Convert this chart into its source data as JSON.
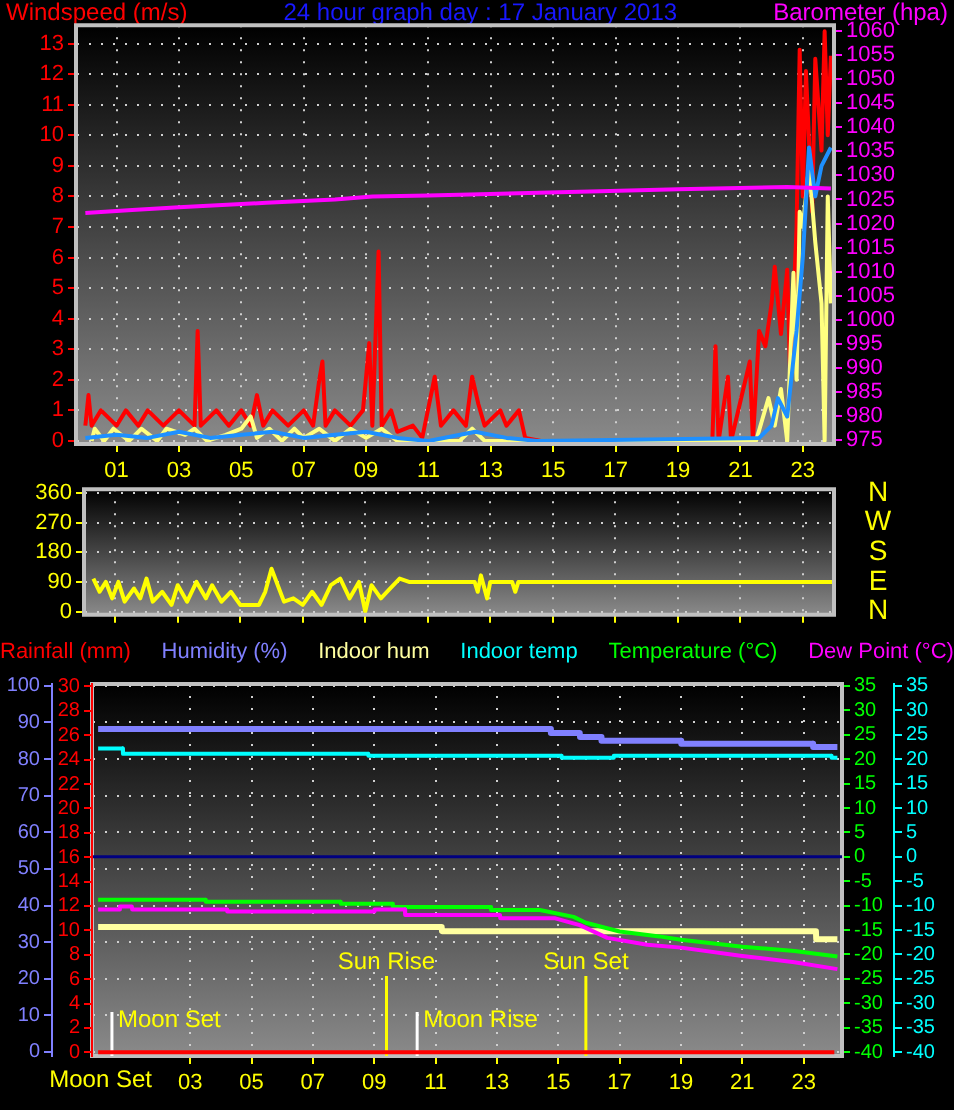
{
  "chart_data": [
    {
      "type": "line",
      "title": "24 hour graph day : 17 January 2013",
      "ylabel": "Windspeed (m/s)",
      "y2label": "Barometer (hpa)",
      "grid": true,
      "xlim": [
        -0.3,
        24.0
      ],
      "xticks": [
        {
          "value": 1,
          "label": "01"
        },
        {
          "value": 3,
          "label": "03"
        },
        {
          "value": 5,
          "label": "05"
        },
        {
          "value": 7,
          "label": "07"
        },
        {
          "value": 9,
          "label": "09"
        },
        {
          "value": 11,
          "label": "11"
        },
        {
          "value": 13,
          "label": "13"
        },
        {
          "value": 15,
          "label": "15"
        },
        {
          "value": 17,
          "label": "17"
        },
        {
          "value": 19,
          "label": "19"
        },
        {
          "value": 21,
          "label": "21"
        },
        {
          "value": 23,
          "label": "23"
        }
      ],
      "ylim": [
        -0.1,
        13.6
      ],
      "yticks": [
        0,
        1,
        2,
        3,
        4,
        5,
        6,
        7,
        8,
        9,
        10,
        11,
        12,
        13
      ],
      "y2lim": [
        974.2,
        1061.2
      ],
      "y2ticks": [
        975,
        980,
        985,
        990,
        995,
        1000,
        1005,
        1010,
        1015,
        1020,
        1025,
        1030,
        1035,
        1040,
        1045,
        1050,
        1055,
        1060
      ],
      "series": [
        {
          "color": "#ff0000",
          "x": [
            0.0,
            0.1,
            0.2,
            0.5,
            1.0,
            1.3,
            1.7,
            2.0,
            2.5,
            3.0,
            3.5,
            3.6,
            3.7,
            4.2,
            4.6,
            5.0,
            5.3,
            5.5,
            5.7,
            6.0,
            6.5,
            7.0,
            7.3,
            7.5,
            7.6,
            7.7,
            8.0,
            8.5,
            8.9,
            9.1,
            9.2,
            9.4,
            9.5,
            9.8,
            10.0,
            10.5,
            10.8,
            11.2,
            11.4,
            11.8,
            12.2,
            12.4,
            12.6,
            12.8,
            13.3,
            13.5,
            13.9,
            14.1,
            14.6,
            20.1,
            20.2,
            20.3,
            20.6,
            20.7,
            21.3,
            21.4,
            21.6,
            21.8,
            22.0,
            22.1,
            22.3,
            22.5,
            22.6,
            22.8,
            22.9,
            23.0,
            23.1,
            23.3,
            23.4,
            23.6,
            23.7,
            23.8,
            23.9
          ],
          "values": [
            0.5,
            1.5,
            0.5,
            1,
            0.5,
            1,
            0.5,
            1,
            0.5,
            1,
            0.5,
            3.6,
            0.5,
            1,
            0.5,
            1,
            0.5,
            1.5,
            0.5,
            1,
            0.5,
            1,
            0.5,
            2,
            2.6,
            0.5,
            1,
            0.5,
            1,
            3.2,
            0.5,
            6.2,
            0.5,
            1,
            0.3,
            0.5,
            0.1,
            2.1,
            0.5,
            1,
            0.5,
            2.1,
            1.2,
            0.5,
            1,
            0.5,
            1,
            0.1,
            0,
            0,
            3.1,
            0,
            2.1,
            0,
            2.6,
            0,
            3.6,
            3.1,
            4.5,
            5.7,
            3.5,
            5.6,
            2,
            7,
            12.8,
            8,
            12.1,
            7.5,
            12.5,
            9.5,
            13.4,
            10,
            12.6
          ]
        },
        {
          "color": "#ffff80",
          "x": [
            0.2,
            0.3,
            0.6,
            0.9,
            1.4,
            1.8,
            2.3,
            2.6,
            3.2,
            3.5,
            3.9,
            4.5,
            5.0,
            5.3,
            5.5,
            5.9,
            6.3,
            6.7,
            7.0,
            7.5,
            8.0,
            8.5,
            9.0,
            9.5,
            10.0,
            12.0,
            12.4,
            12.8,
            21.5,
            21.9,
            22.1,
            22.3,
            22.5,
            22.7,
            22.8,
            22.9,
            23.0,
            23.2,
            23.4,
            23.6,
            23.7,
            23.8,
            23.9
          ],
          "values": [
            0,
            0.4,
            0,
            0.4,
            0,
            0.4,
            0,
            0.4,
            0.2,
            0.4,
            0,
            0.2,
            0.4,
            0.8,
            0.1,
            0.4,
            0,
            0.4,
            0.1,
            0.4,
            0,
            0.4,
            0.1,
            0.4,
            0,
            0,
            0.4,
            0,
            0,
            1.4,
            0.5,
            1.7,
            0,
            5.5,
            2,
            7.5,
            7,
            9,
            6.5,
            4.5,
            0,
            8,
            4.5
          ]
        },
        {
          "color": "#1e90ff",
          "x": [
            0,
            1,
            2,
            3,
            4,
            5,
            6,
            7,
            8,
            9,
            10,
            11,
            12.5,
            13.5,
            14.5,
            21.6,
            22.0,
            22.2,
            22.5,
            22.8,
            23.0,
            23.2,
            23.4,
            23.6,
            23.9
          ],
          "values": [
            0.1,
            0.2,
            0.1,
            0.3,
            0.1,
            0.2,
            0.3,
            0.1,
            0.2,
            0.3,
            0.1,
            0,
            0.3,
            0.1,
            0,
            0.1,
            0.5,
            1.4,
            0.8,
            3.6,
            6,
            9.6,
            8,
            9,
            9.6
          ]
        },
        {
          "color": "#ff00ff",
          "axis": "y2",
          "x": [
            0,
            1.5,
            3,
            5.8,
            8,
            9.2,
            11,
            13.3,
            16.5,
            19,
            22.5,
            23.9
          ],
          "values": [
            1022.2,
            1022.8,
            1023.4,
            1024.3,
            1025,
            1025.6,
            1025.8,
            1026.2,
            1026.7,
            1027.1,
            1027.6,
            1027.3
          ]
        }
      ]
    },
    {
      "type": "line",
      "grid": true,
      "tick_labels": "y",
      "xlim": [
        0,
        24
      ],
      "xticks": [
        1,
        3,
        5,
        7,
        9,
        11,
        13,
        15,
        17,
        19,
        21,
        23
      ],
      "ylim": [
        -10,
        372
      ],
      "yticks": [
        0,
        90,
        180,
        270,
        360
      ],
      "annotations": [
        "N",
        "W",
        "S",
        "E",
        "N"
      ],
      "series": [
        {
          "color": "#ffff00",
          "x": [
            0.3,
            0.5,
            0.7,
            0.9,
            1.1,
            1.3,
            1.6,
            1.8,
            2.0,
            2.2,
            2.5,
            2.8,
            3.0,
            3.3,
            3.6,
            3.9,
            4.1,
            4.4,
            4.7,
            5.0,
            5.6,
            5.8,
            6.0,
            6.2,
            6.4,
            6.7,
            7.0,
            7.3,
            7.6,
            7.9,
            8.2,
            8.5,
            8.8,
            9.0,
            9.2,
            9.5,
            9.8,
            10.1,
            10.4,
            12.5,
            12.6,
            12.7,
            12.9,
            13.0,
            13.7,
            13.8,
            13.9,
            24.0
          ],
          "values": [
            100,
            60,
            90,
            40,
            90,
            30,
            70,
            40,
            100,
            30,
            60,
            20,
            80,
            30,
            90,
            40,
            80,
            30,
            60,
            20,
            20,
            60,
            130,
            80,
            30,
            40,
            20,
            60,
            20,
            80,
            100,
            40,
            90,
            0,
            80,
            40,
            70,
            100,
            90,
            90,
            60,
            110,
            40,
            90,
            90,
            60,
            90,
            90
          ]
        }
      ]
    },
    {
      "type": "line",
      "tick_labels": "y",
      "legend": "top left",
      "xlim": [
        -0.2,
        24.25
      ],
      "ylim": [
        -0.3,
        30.2
      ],
      "yticks": [
        0,
        2,
        4,
        6,
        8,
        10,
        12,
        14,
        16,
        18,
        20,
        22,
        24,
        26,
        28,
        30
      ],
      "series": [
        {
          "name": "Rainfall (mm)",
          "color": "#ff0000",
          "x": [
            0,
            1,
            2,
            3,
            4,
            5,
            6,
            7,
            8,
            9,
            10,
            11,
            12,
            13,
            14,
            15,
            16,
            17,
            18,
            19,
            20,
            21,
            22,
            23,
            24
          ],
          "values": [
            0,
            0,
            0,
            0,
            0,
            0,
            0,
            0,
            0,
            0,
            0,
            0,
            0,
            0,
            0,
            0,
            0,
            0,
            0,
            0,
            0,
            0,
            0,
            0,
            0
          ]
        }
      ]
    },
    {
      "type": "line",
      "grid": true,
      "legend": "top",
      "annotations": [
        "Moon Set"
      ],
      "xlim": [
        -0.2,
        24.25
      ],
      "xticks": [
        {
          "value": 3,
          "label": "03"
        },
        {
          "value": 5,
          "label": "05"
        },
        {
          "value": 7,
          "label": "07"
        },
        {
          "value": 9,
          "label": "09"
        },
        {
          "value": 11,
          "label": "11"
        },
        {
          "value": 13,
          "label": "13"
        },
        {
          "value": 15,
          "label": "15"
        },
        {
          "value": 17,
          "label": "17"
        },
        {
          "value": 19,
          "label": "19"
        },
        {
          "value": 21,
          "label": "21"
        },
        {
          "value": 23,
          "label": "23"
        }
      ],
      "ylim": [
        -1.1,
        100.5
      ],
      "yticks": [
        0,
        10,
        20,
        30,
        40,
        50,
        60,
        70,
        80,
        90,
        100
      ],
      "y2lim": [
        -40.8,
        35.4
      ],
      "y2ticks": [
        -40,
        -35,
        -30,
        -25,
        -20,
        -15,
        -10,
        -5,
        0,
        5,
        10,
        15,
        20,
        25,
        30,
        35
      ],
      "y3lim": [
        -40.8,
        35.4
      ],
      "y3ticks": [
        -40,
        -35,
        -30,
        -25,
        -20,
        -15,
        -10,
        -5,
        0,
        5,
        10,
        15,
        20,
        25,
        30,
        35
      ],
      "ref_lines": [
        {
          "axis": "y2",
          "value": 0,
          "color": "#000080"
        },
        {
          "axis": "x",
          "value": 0.45,
          "label": "Moon Set",
          "color": "#ffffff"
        },
        {
          "axis": "x",
          "value": 9.4,
          "label": "Sun Rise",
          "color": "#ffff00"
        },
        {
          "axis": "x",
          "value": 10.4,
          "label": "Moon Rise",
          "color": "#ffffff"
        },
        {
          "axis": "x",
          "value": 15.9,
          "label": "Sun Set",
          "color": "#ffff00"
        }
      ],
      "series": [
        {
          "name": "Humidity (%)",
          "color": "#8080ff",
          "x": [
            0,
            14.75,
            14.76,
            15.7,
            15.71,
            16.4,
            16.41,
            19.0,
            19.01,
            23.3,
            23.31,
            24.1
          ],
          "values": [
            88.2,
            88.2,
            87.1,
            87.1,
            86.0,
            86.0,
            85.0,
            85.0,
            84.2,
            84.2,
            83.3,
            83.3
          ]
        },
        {
          "name": "Indoor hum",
          "color": "#ffffa0",
          "x": [
            0,
            11.2,
            11.21,
            23.4,
            23.41,
            24.1
          ],
          "values": [
            34.1,
            34.1,
            33.0,
            33.0,
            30.8,
            30.8
          ]
        },
        {
          "name": "Indoor temp",
          "color": "#00ffff",
          "axis": "y3",
          "x": [
            0,
            0.8,
            0.81,
            8.8,
            8.81,
            15.1,
            15.11,
            16.8,
            16.81,
            23.9,
            23.91,
            24.1
          ],
          "values": [
            22.2,
            22.2,
            21.1,
            21.1,
            20.7,
            20.7,
            20.3,
            20.3,
            20.7,
            20.7,
            20.3,
            20.3
          ]
        },
        {
          "name": "Temperature (°C)",
          "color": "#00ff00",
          "axis": "y2",
          "x": [
            0,
            3.5,
            3.51,
            7.9,
            7.91,
            9.6,
            9.61,
            12.8,
            12.81,
            14.4,
            15.5,
            15.9,
            17.0,
            18.3,
            19.0,
            21.0,
            22.7,
            24.1
          ],
          "values": [
            -8.8,
            -8.8,
            -9.2,
            -9.2,
            -9.6,
            -9.6,
            -10.3,
            -10.3,
            -10.9,
            -10.9,
            -12.3,
            -13.5,
            -15.3,
            -16.3,
            -17,
            -18.4,
            -19.3,
            -20.4
          ]
        },
        {
          "name": "Dew Point (°C)",
          "color": "#ff00ff",
          "axis": "y2",
          "x": [
            0,
            0.7,
            0.71,
            1.1,
            1.11,
            4.2,
            4.21,
            9.0,
            9.01,
            10.0,
            10.01,
            13.1,
            13.11,
            14.9,
            15.7,
            16.6,
            17.9,
            19.0,
            21.0,
            22.7,
            24.1
          ],
          "values": [
            -10.8,
            -10.8,
            -10.2,
            -10.2,
            -10.8,
            -10.8,
            -11.2,
            -11.2,
            -10.8,
            -10.8,
            -11.9,
            -11.9,
            -12.6,
            -12.6,
            -14.0,
            -16.6,
            -18.0,
            -18.6,
            -20.3,
            -21.6,
            -23.0
          ]
        }
      ]
    }
  ]
}
